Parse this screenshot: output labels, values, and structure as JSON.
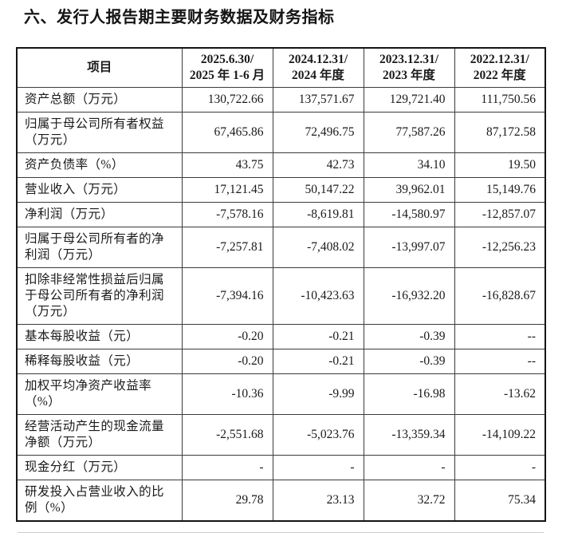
{
  "page": {
    "title": "六、发行人报告期主要财务数据及财务指标"
  },
  "colors": {
    "text": "#1a1a1a",
    "border_outer": "#141414",
    "border_inner": "#3b3b3b",
    "background": "#ffffff"
  },
  "table": {
    "header": {
      "item_label": "项目",
      "periods": [
        {
          "line1": "2025.6.30/",
          "line2": "2025 年 1-6 月"
        },
        {
          "line1": "2024.12.31/",
          "line2": "2024 年度"
        },
        {
          "line1": "2023.12.31/",
          "line2": "2023 年度"
        },
        {
          "line1": "2022.12.31/",
          "line2": "2022 年度"
        }
      ]
    },
    "rows": [
      {
        "label": "资产总额（万元）",
        "values": [
          "130,722.66",
          "137,571.67",
          "129,721.40",
          "111,750.56"
        ]
      },
      {
        "label": "归属于母公司所有者权益（万元）",
        "values": [
          "67,465.86",
          "72,496.75",
          "77,587.26",
          "87,172.58"
        ]
      },
      {
        "label": "资产负债率（%）",
        "values": [
          "43.75",
          "42.73",
          "34.10",
          "19.50"
        ]
      },
      {
        "label": "营业收入（万元）",
        "values": [
          "17,121.45",
          "50,147.22",
          "39,962.01",
          "15,149.76"
        ]
      },
      {
        "label": "净利润（万元）",
        "values": [
          "-7,578.16",
          "-8,619.81",
          "-14,580.97",
          "-12,857.07"
        ]
      },
      {
        "label": "归属于母公司所有者的净利润（万元）",
        "values": [
          "-7,257.81",
          "-7,408.02",
          "-13,997.07",
          "-12,256.23"
        ]
      },
      {
        "label": "扣除非经常性损益后归属于母公司所有者的净利润（万元）",
        "values": [
          "-7,394.16",
          "-10,423.63",
          "-16,932.20",
          "-16,828.67"
        ]
      },
      {
        "label": "基本每股收益（元）",
        "values": [
          "-0.20",
          "-0.21",
          "-0.39",
          "--"
        ]
      },
      {
        "label": "稀释每股收益（元）",
        "values": [
          "-0.20",
          "-0.21",
          "-0.39",
          "--"
        ]
      },
      {
        "label": "加权平均净资产收益率（%）",
        "values": [
          "-10.36",
          "-9.99",
          "-16.98",
          "-13.62"
        ]
      },
      {
        "label": "经营活动产生的现金流量净额（万元）",
        "values": [
          "-2,551.68",
          "-5,023.76",
          "-13,359.34",
          "-14,109.22"
        ]
      },
      {
        "label": "现金分红（万元）",
        "values": [
          "-",
          "-",
          "-",
          "-"
        ]
      },
      {
        "label": "研发投入占营业收入的比例（%）",
        "values": [
          "29.78",
          "23.13",
          "32.72",
          "75.34"
        ]
      }
    ]
  }
}
